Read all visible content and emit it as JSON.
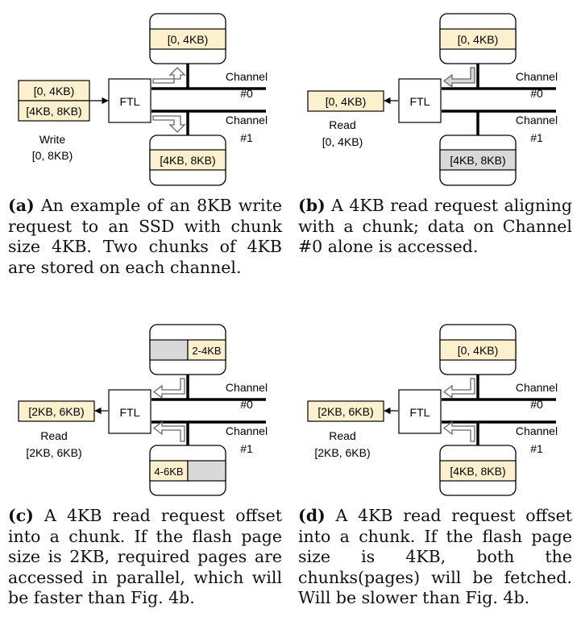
{
  "panels": {
    "a": {
      "caption_label": "(a)",
      "caption_text": "An example of an 8KB write request to an SSD with chunk size 4KB. Two chunks of 4KB are stored on each channel.",
      "req_top": "[0, 4KB)",
      "req_bottom": "[4KB, 8KB)",
      "ftl": "FTL",
      "op_line1": "Write",
      "op_line2": "[0, 8KB)",
      "top_chunk": "[0, 4KB)",
      "bottom_chunk": "[4KB, 8KB)",
      "ch0_line1": "Channel",
      "ch0_line2": "#0",
      "ch1_line1": "Channel",
      "ch1_line2": "#1"
    },
    "b": {
      "caption_label": "(b)",
      "caption_text": "A 4KB read request aligning with a chunk; data on Channel #0 alone is accessed.",
      "req": "[0, 4KB)",
      "ftl": "FTL",
      "op_line1": "Read",
      "op_line2": "[0, 4KB)",
      "top_chunk": "[0, 4KB)",
      "bottom_chunk": "[4KB, 8KB)",
      "ch0_line1": "Channel",
      "ch0_line2": "#0",
      "ch1_line1": "Channel",
      "ch1_line2": "#1"
    },
    "c": {
      "caption_label": "(c)",
      "caption_text": "A 4KB read request offset into a chunk. If the flash page size is 2KB, required pages are accessed in parallel, which will be faster than Fig. 4b.",
      "req": "[2KB, 6KB)",
      "ftl": "FTL",
      "op_line1": "Read",
      "op_line2": "[2KB, 6KB)",
      "top_chunk": "2-4KB",
      "bottom_chunk": "4-6KB",
      "ch0_line1": "Channel",
      "ch0_line2": "#0",
      "ch1_line1": "Channel",
      "ch1_line2": "#1"
    },
    "d": {
      "caption_label": "(d)",
      "caption_text": "A 4KB read request offset into a chunk. If the flash page size is 4KB, both the chunks(pages) will be fetched. Will be slower than Fig. 4b.",
      "req": "[2KB, 6KB)",
      "ftl": "FTL",
      "op_line1": "Read",
      "op_line2": "[2KB, 6KB)",
      "top_chunk": "[0, 4KB)",
      "bottom_chunk": "[4KB, 8KB)",
      "ch0_line1": "Channel",
      "ch0_line2": "#0",
      "ch1_line1": "Channel",
      "ch1_line2": "#1"
    }
  },
  "colors": {
    "chunk_fill": "#fdf0cc",
    "grey_fill": "#d9d9d9",
    "line": "#000000"
  }
}
